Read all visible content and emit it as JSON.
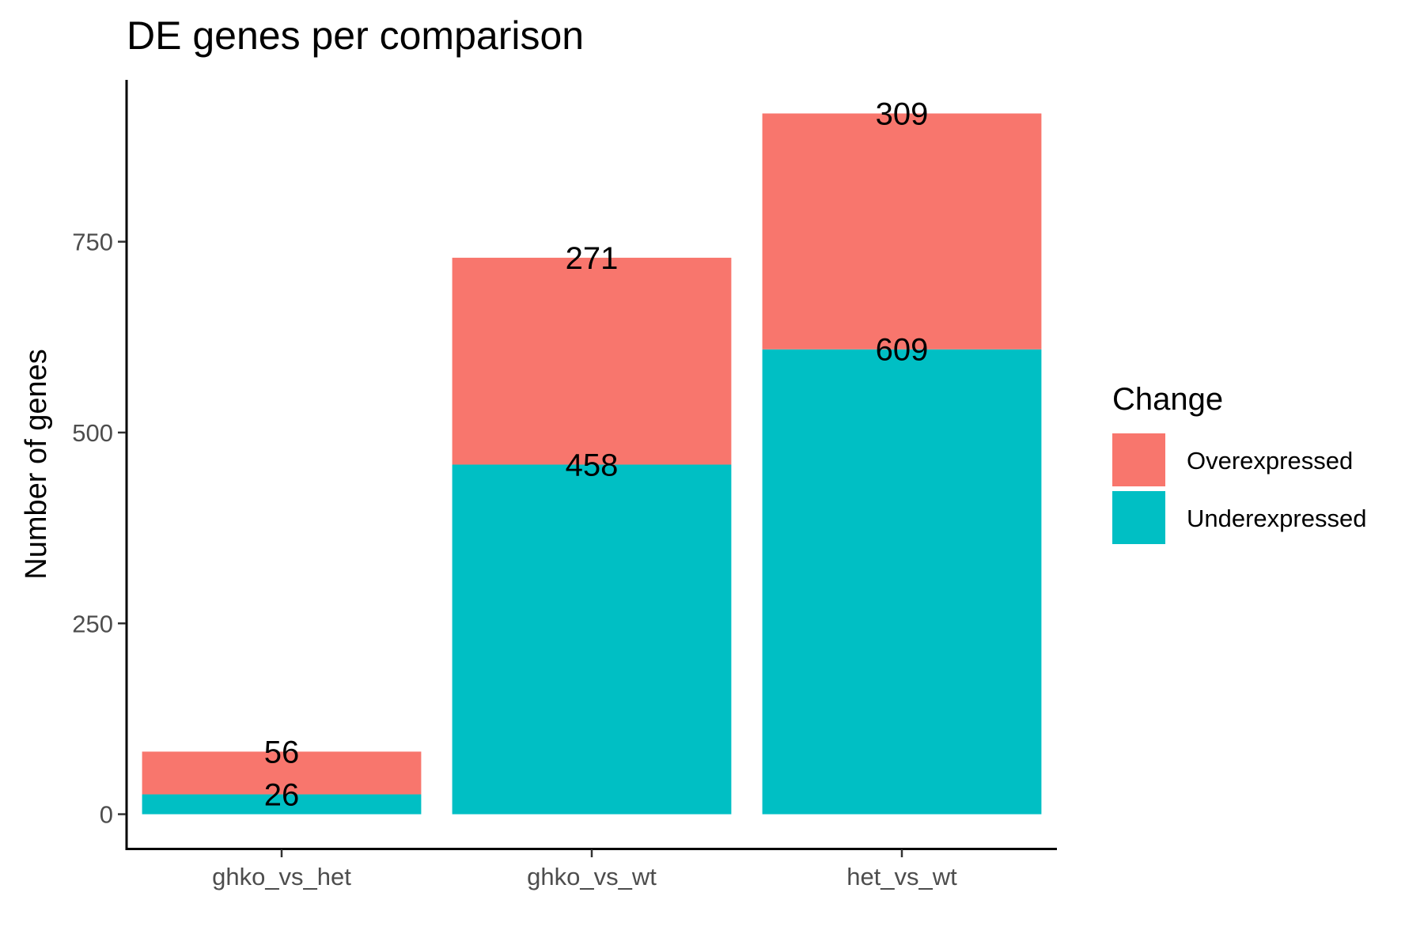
{
  "chart_data": {
    "type": "bar",
    "stacked": true,
    "title": "DE genes per comparison",
    "xlabel": "",
    "ylabel": "Number of genes",
    "categories": [
      "ghko_vs_het",
      "ghko_vs_wt",
      "het_vs_wt"
    ],
    "series": [
      {
        "name": "Underexpressed",
        "color": "#00BFC4",
        "values": [
          26,
          458,
          609
        ]
      },
      {
        "name": "Overexpressed",
        "color": "#F8766D",
        "values": [
          56,
          271,
          309
        ]
      }
    ],
    "data_labels": [
      {
        "series": "Underexpressed",
        "values": [
          "26",
          "458",
          "609"
        ]
      },
      {
        "series": "Overexpressed",
        "values": [
          "56",
          "271",
          "309"
        ]
      }
    ],
    "yticks": [
      0,
      250,
      500,
      750
    ],
    "ytick_labels": [
      "0",
      "250",
      "500",
      "750"
    ],
    "ylim": [
      -45,
      962
    ],
    "legend": {
      "title": "Change",
      "position": "right",
      "items": [
        {
          "label": "Overexpressed",
          "color": "#F8766D"
        },
        {
          "label": "Underexpressed",
          "color": "#00BFC4"
        }
      ]
    },
    "grid": false
  }
}
